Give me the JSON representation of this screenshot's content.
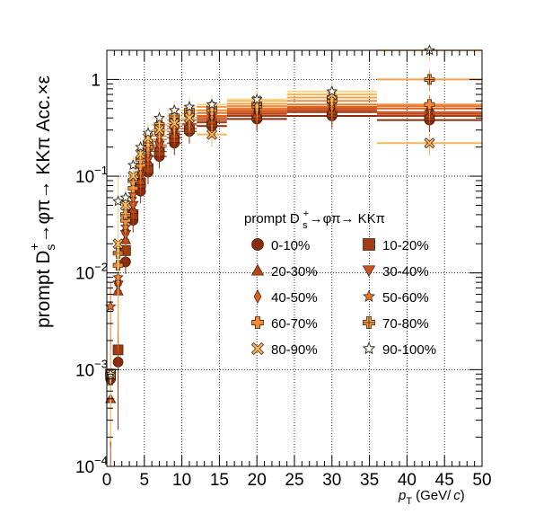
{
  "chart_data": {
    "type": "scatter",
    "title": "",
    "xlabel": {
      "main": "p",
      "sub": "T",
      "unit": "(GeV/",
      "unit_italic": "c",
      "unit_close": ")"
    },
    "ylabel": {
      "a": "prompt D",
      "sub": "s",
      "sup": "+",
      "b": "→φπ→ KKπ Acc.×ε"
    },
    "xlim": [
      0,
      50
    ],
    "ylim": [
      0.0001,
      2.0
    ],
    "yscale": "log",
    "grid": true,
    "x_tick_labels": [
      "0",
      "5",
      "10",
      "15",
      "20",
      "25",
      "30",
      "35",
      "40",
      "45",
      "50"
    ],
    "y_tick_labels": [
      {
        "v": 0.0001,
        "base": "10",
        "exp": "−4"
      },
      {
        "v": 0.001,
        "base": "10",
        "exp": "−3"
      },
      {
        "v": 0.01,
        "base": "10",
        "exp": "−2"
      },
      {
        "v": 0.1,
        "base": "10",
        "exp": "−1"
      },
      {
        "v": 1,
        "base": "1",
        "exp": ""
      }
    ],
    "legend": {
      "title": {
        "a": "prompt D",
        "sub": "s",
        "sup": "+",
        "b": "→φπ→ KKπ"
      },
      "placement": "center-right",
      "columns": 2
    },
    "bins": [
      [
        0,
        1
      ],
      [
        1,
        2
      ],
      [
        2,
        3
      ],
      [
        3,
        4
      ],
      [
        4,
        5
      ],
      [
        5,
        6
      ],
      [
        6,
        8
      ],
      [
        8,
        10
      ],
      [
        10,
        12
      ],
      [
        12,
        16
      ],
      [
        16,
        24
      ],
      [
        24,
        36
      ],
      [
        36,
        50
      ]
    ],
    "series": [
      {
        "name": "0-10%",
        "marker": "circle",
        "color": "#8b2a0d",
        "values": [
          0.0008,
          0.0012,
          0.013,
          0.035,
          0.07,
          0.11,
          0.16,
          0.22,
          0.29,
          0.33,
          0.39,
          0.42,
          0.38
        ]
      },
      {
        "name": "10-20%",
        "marker": "square",
        "color": "#9e3d12",
        "values": [
          0.0009,
          0.0016,
          0.017,
          0.04,
          0.085,
          0.12,
          0.18,
          0.25,
          0.31,
          0.36,
          0.42,
          0.46,
          0.42
        ]
      },
      {
        "name": "20-30%",
        "marker": "triangle-up",
        "color": "#b8461a",
        "values": [
          0.0005,
          0.0065,
          0.022,
          0.045,
          0.09,
          0.14,
          0.2,
          0.27,
          0.34,
          0.38,
          0.44,
          0.48,
          0.44
        ]
      },
      {
        "name": "30-40%",
        "marker": "triangle-down",
        "color": "#c9521f",
        "values": [
          0.0008,
          0.0075,
          0.025,
          0.05,
          0.1,
          0.15,
          0.21,
          0.29,
          0.35,
          0.4,
          0.46,
          0.5,
          0.46
        ]
      },
      {
        "name": "40-50%",
        "marker": "diamond",
        "color": "#d8621e",
        "values": [
          0.0009,
          0.008,
          0.028,
          0.06,
          0.11,
          0.17,
          0.24,
          0.31,
          0.38,
          0.42,
          0.48,
          0.52,
          0.5
        ]
      },
      {
        "name": "50-60%",
        "marker": "star",
        "color": "#e8742a",
        "values": [
          0.0045,
          0.009,
          0.03,
          0.065,
          0.12,
          0.18,
          0.26,
          0.33,
          0.4,
          0.45,
          0.5,
          0.55,
          0.53
        ]
      },
      {
        "name": "60-70%",
        "marker": "cross",
        "color": "#f08a38",
        "values": [
          0.0009,
          0.012,
          0.035,
          0.075,
          0.13,
          0.2,
          0.3,
          0.38,
          0.44,
          0.48,
          0.53,
          0.6,
          0.55
        ]
      },
      {
        "name": "70-80%",
        "marker": "cross-open",
        "color": "#f4a04c",
        "values": [
          0.0009,
          0.016,
          0.04,
          0.09,
          0.15,
          0.22,
          0.34,
          0.42,
          0.48,
          0.52,
          0.56,
          0.65,
          1.0
        ]
      },
      {
        "name": "80-90%",
        "marker": "x",
        "color": "#f7b55a",
        "values": [
          0.0009,
          0.02,
          0.05,
          0.1,
          0.17,
          0.25,
          0.3,
          0.35,
          0.4,
          0.27,
          0.6,
          0.7,
          0.22
        ]
      },
      {
        "name": "90-100%",
        "marker": "star-open",
        "color": "#fbd58a",
        "values": [
          0.0009,
          0.055,
          0.06,
          0.13,
          0.2,
          0.28,
          0.4,
          0.48,
          0.52,
          0.55,
          0.62,
          0.75,
          2.0
        ]
      }
    ]
  }
}
